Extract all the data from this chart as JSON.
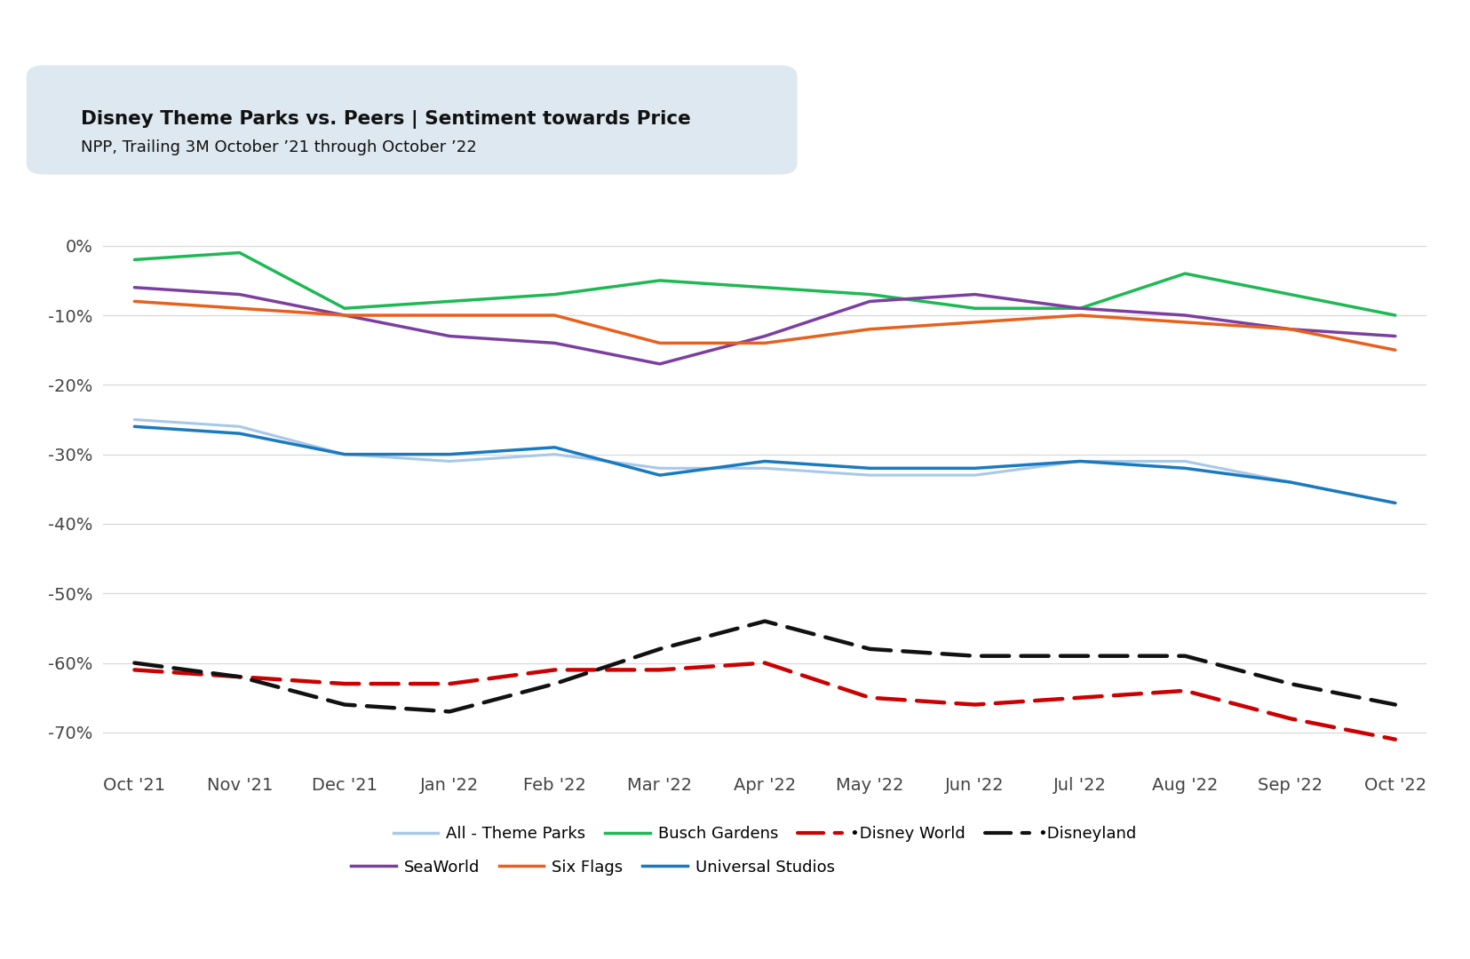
{
  "title_line1": "Disney Theme Parks vs. Peers | Sentiment towards Price",
  "title_line2": "NPP, Trailing 3M October ’21 through October ’22",
  "x_labels": [
    "Oct '21",
    "Nov '21",
    "Dec '21",
    "Jan '22",
    "Feb '22",
    "Mar '22",
    "Apr '22",
    "May '22",
    "Jun '22",
    "Jul '22",
    "Aug '22",
    "Sep '22",
    "Oct '22"
  ],
  "ylim": [
    -75,
    5
  ],
  "yticks": [
    0,
    -10,
    -20,
    -30,
    -40,
    -50,
    -60,
    -70
  ],
  "series": {
    "All - Theme Parks": {
      "values": [
        -25,
        -26,
        -30,
        -31,
        -30,
        -32,
        -32,
        -33,
        -33,
        -31,
        -31,
        -34,
        -37
      ],
      "color": "#a8c8e8",
      "linestyle": "solid",
      "linewidth": 2.2,
      "zorder": 3
    },
    "Busch Gardens": {
      "values": [
        -2,
        -1,
        -9,
        -8,
        -7,
        -5,
        -6,
        -7,
        -9,
        -9,
        -4,
        -7,
        -10
      ],
      "color": "#1db954",
      "linestyle": "solid",
      "linewidth": 2.5,
      "zorder": 4
    },
    "Disney World": {
      "values": [
        -61,
        -62,
        -63,
        -63,
        -61,
        -61,
        -60,
        -65,
        -66,
        -65,
        -64,
        -68,
        -71
      ],
      "color": "#cc0000",
      "linestyle": "dashed",
      "linewidth": 3.2,
      "zorder": 5
    },
    "Disneyland": {
      "values": [
        -60,
        -62,
        -66,
        -67,
        -63,
        -58,
        -54,
        -58,
        -59,
        -59,
        -59,
        -63,
        -66
      ],
      "color": "#111111",
      "linestyle": "dashed",
      "linewidth": 3.2,
      "zorder": 5
    },
    "SeaWorld": {
      "values": [
        -6,
        -7,
        -10,
        -13,
        -14,
        -17,
        -13,
        -8,
        -7,
        -9,
        -10,
        -12,
        -13
      ],
      "color": "#7b3fa0",
      "linestyle": "solid",
      "linewidth": 2.5,
      "zorder": 4
    },
    "Six Flags": {
      "values": [
        -8,
        -9,
        -10,
        -10,
        -10,
        -14,
        -14,
        -12,
        -11,
        -10,
        -11,
        -12,
        -15
      ],
      "color": "#e8601c",
      "linestyle": "solid",
      "linewidth": 2.5,
      "zorder": 4
    },
    "Universal Studios": {
      "values": [
        -26,
        -27,
        -30,
        -30,
        -29,
        -33,
        -31,
        -32,
        -32,
        -31,
        -32,
        -34,
        -37
      ],
      "color": "#1a7abf",
      "linestyle": "solid",
      "linewidth": 2.5,
      "zorder": 4
    }
  },
  "background_color": "#ffffff",
  "grid_color": "#d8d8d8",
  "title_box_color": "#dde8f0"
}
